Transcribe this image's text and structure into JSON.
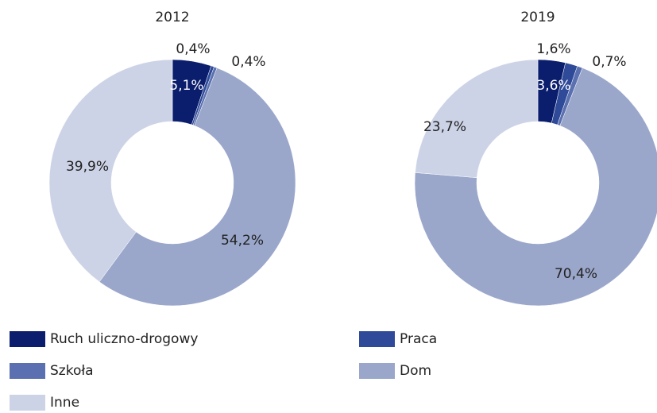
{
  "chart_data": [
    {
      "type": "pie",
      "title": "2012",
      "categories": [
        "Ruch uliczno-drogowy",
        "Praca",
        "Szkoła",
        "Dom",
        "Inne"
      ],
      "values": [
        5.1,
        0.4,
        0.4,
        54.2,
        39.9
      ],
      "value_labels": [
        "5,1%",
        "0,4%",
        "0,4%",
        "54,2%",
        "39,9%"
      ],
      "colors": [
        "#0b1e6e",
        "#2f4a99",
        "#5b70b0",
        "#9aa7cb",
        "#cdd3e6"
      ]
    },
    {
      "type": "pie",
      "title": "2019",
      "categories": [
        "Ruch uliczno-drogowy",
        "Praca",
        "Szkoła",
        "Dom",
        "Inne"
      ],
      "values": [
        3.6,
        1.6,
        0.7,
        70.4,
        23.7
      ],
      "value_labels": [
        "3,6%",
        "1,6%",
        "0,7%",
        "70,4%",
        "23,7%"
      ],
      "colors": [
        "#0b1e6e",
        "#2f4a99",
        "#5b70b0",
        "#9aa7cb",
        "#cdd3e6"
      ]
    }
  ]
}
